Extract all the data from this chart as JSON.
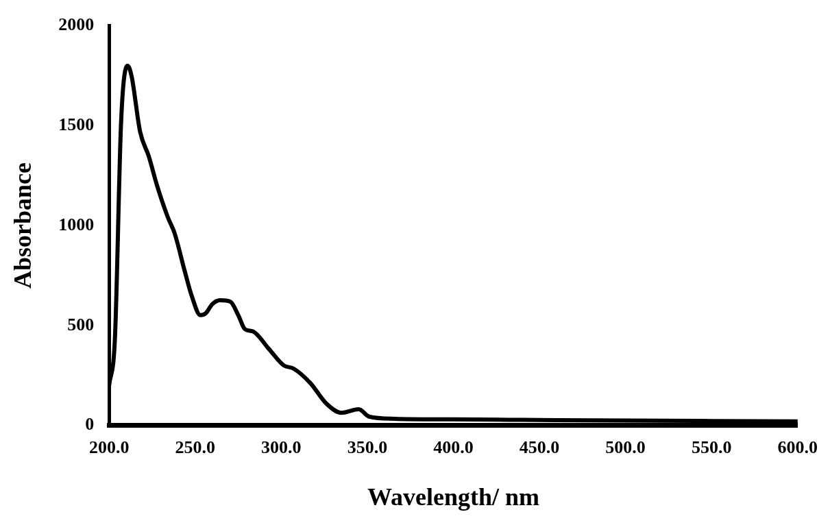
{
  "chart_data": {
    "type": "line",
    "xlabel": "Wavelength/ nm",
    "ylabel": "Absorbance",
    "x": [
      200,
      203.4,
      207,
      210.7,
      213,
      218,
      223,
      228,
      234,
      238,
      244,
      248,
      253,
      256,
      260,
      264.5,
      270.5,
      275,
      279,
      283.6,
      292.6,
      301.5,
      307,
      317,
      326,
      335,
      345,
      351,
      366,
      400,
      432,
      500,
      550,
      600
    ],
    "series": [
      {
        "color": "#000000",
        "values": [
          200,
          440,
          1525,
          1800,
          1750,
          1470,
          1348,
          1196,
          1044,
          963,
          770,
          648,
          552,
          560,
          607,
          626,
          619,
          552,
          481,
          470,
          385,
          300,
          285,
          211,
          111,
          63,
          81,
          44,
          33,
          30,
          28,
          24,
          22,
          20
        ]
      }
    ],
    "xlim": [
      200,
      600
    ],
    "xticks": [
      {
        "value": 200,
        "label": "200.0"
      },
      {
        "value": 250,
        "label": "250.0"
      },
      {
        "value": 300,
        "label": "300.0"
      },
      {
        "value": 350,
        "label": "350.0"
      },
      {
        "value": 400,
        "label": "400.0"
      },
      {
        "value": 450,
        "label": "450.0"
      },
      {
        "value": 500,
        "label": "500.0"
      },
      {
        "value": 550,
        "label": "550.0"
      },
      {
        "value": 600,
        "label": "600.0"
      }
    ],
    "ylim": [
      0,
      2000
    ],
    "yticks": [
      0,
      500,
      1000,
      1500,
      2000
    ],
    "grid": false,
    "legend": false,
    "marker": "none",
    "line_style": "solid"
  }
}
